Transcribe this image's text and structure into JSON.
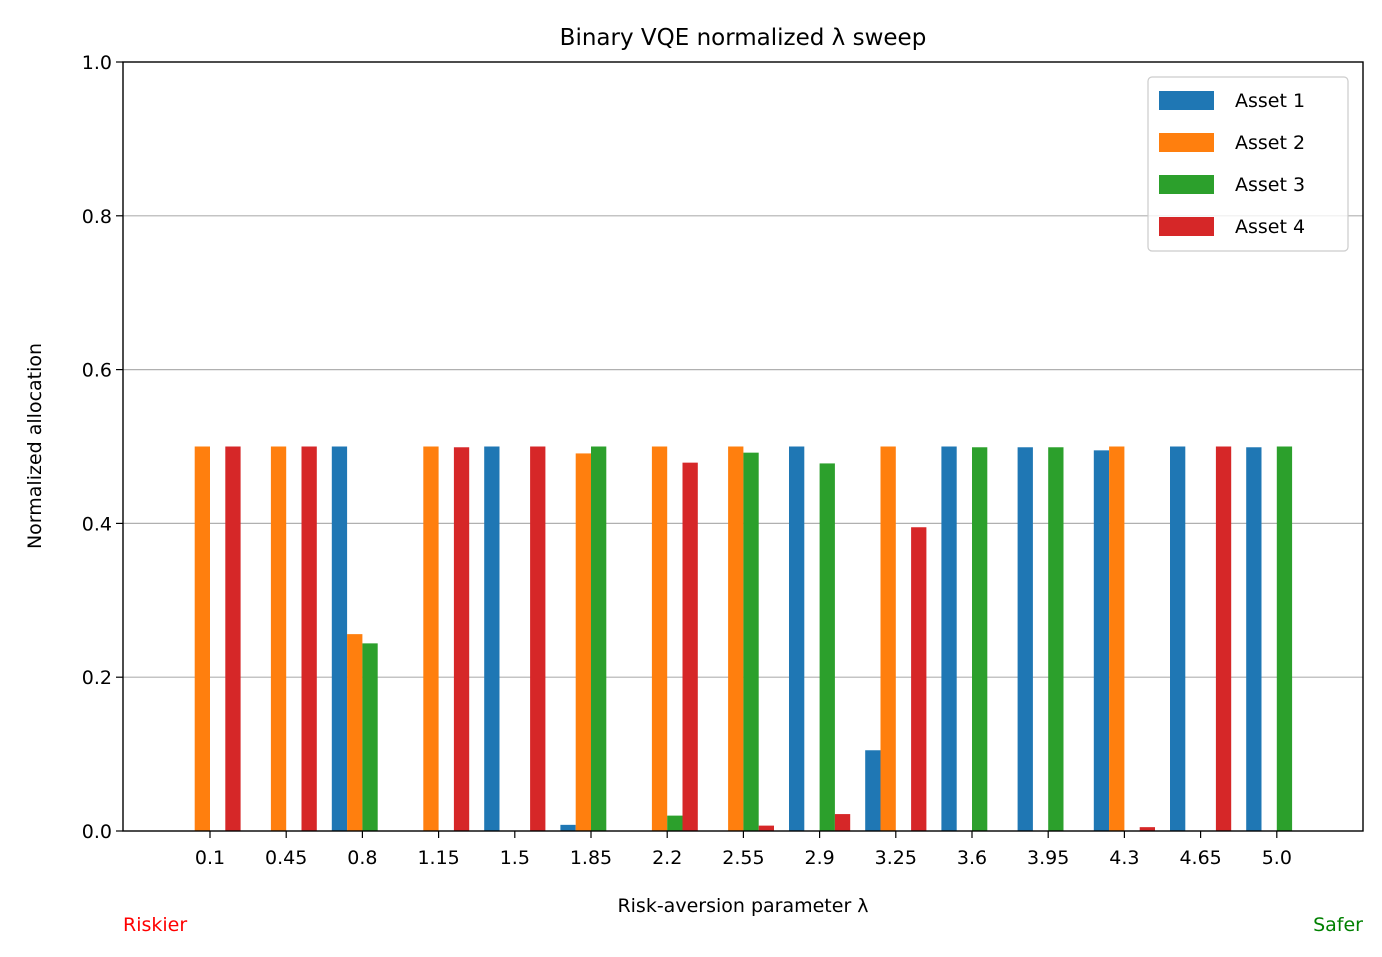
{
  "chart_data": {
    "type": "bar",
    "title": "Binary VQE normalized λ sweep",
    "xlabel": "Risk-aversion parameter λ",
    "ylabel": "Normalized allocation",
    "ylim": [
      0,
      1.0
    ],
    "yticks": [
      "0.0",
      "0.2",
      "0.4",
      "0.6",
      "0.8",
      "1.0"
    ],
    "grid": "y",
    "legend_position": "top-right",
    "categories": [
      "0.1",
      "0.45",
      "0.8",
      "1.15",
      "1.5",
      "1.85",
      "2.2",
      "2.55",
      "2.9",
      "3.25",
      "3.6",
      "3.95",
      "4.3",
      "4.65",
      "5.0"
    ],
    "series": [
      {
        "name": "Asset 1",
        "color": "#1f77b4",
        "values": [
          0,
          0,
          0.5,
          0,
          0.5,
          0.008,
          0,
          0,
          0.5,
          0.105,
          0.5,
          0.499,
          0.495,
          0.5,
          0.499
        ]
      },
      {
        "name": "Asset 2",
        "color": "#ff7f0e",
        "values": [
          0.5,
          0.5,
          0.256,
          0.5,
          0,
          0.491,
          0.5,
          0.5,
          0,
          0.5,
          0,
          0,
          0.5,
          0,
          0
        ]
      },
      {
        "name": "Asset 3",
        "color": "#2ca02c",
        "values": [
          0,
          0,
          0.244,
          0,
          0,
          0.5,
          0.02,
          0.492,
          0.478,
          0,
          0.499,
          0.499,
          0,
          0,
          0.5
        ]
      },
      {
        "name": "Asset 4",
        "color": "#d62728",
        "values": [
          0.5,
          0.5,
          0,
          0.499,
          0.5,
          0,
          0.479,
          0.007,
          0.022,
          0.395,
          0,
          0,
          0.005,
          0.5,
          0
        ]
      }
    ],
    "annotations": [
      {
        "text": "Riskier",
        "color": "#ff0000",
        "position": "bottom-left"
      },
      {
        "text": "Safer",
        "color": "#008000",
        "position": "bottom-right"
      }
    ]
  }
}
